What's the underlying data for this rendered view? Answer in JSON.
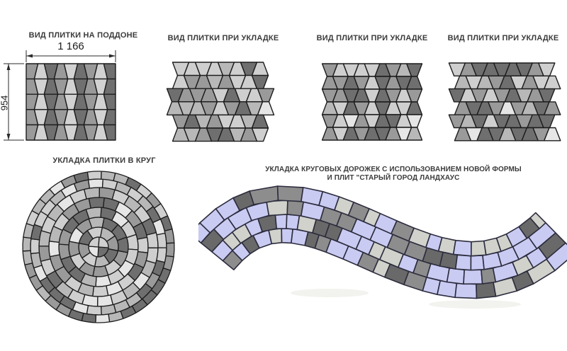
{
  "page": {
    "background": "#ffffff",
    "label_color": "#3b3b3b"
  },
  "panels": {
    "pallet": {
      "label": "ВИД ПЛИТКИ НА ПОДДОНЕ",
      "dim_width": "1 166",
      "dim_height": "954"
    },
    "laying1": {
      "label": "ВИД ПЛИТКИ ПРИ УКЛАДКЕ"
    },
    "laying2": {
      "label": "ВИД ПЛИТКИ ПРИ УКЛАДКЕ"
    },
    "laying3": {
      "label": "ВИД ПЛИТКИ ПРИ УКЛАДКЕ"
    },
    "circle": {
      "label": "УКЛАДКА ПЛИТКИ В КРУГ"
    },
    "path": {
      "label_line1": "УКЛАДКА КРУГОВЫХ ДОРОЖЕК С ИСПОЛЬЗОВАНИЕМ НОВОЙ ФОРМЫ",
      "label_line2": "И ПЛИТ \"СТАРЫЙ ГОРОД ЛАНДХАУС"
    }
  },
  "colors": {
    "outline": "#1c1c1c",
    "path_outline": "#2c2c3e",
    "dim_line": "#2a2a2a",
    "pallet_columns": [
      "#9a9a9a",
      "#d2d2d2",
      "#707070"
    ],
    "grays": {
      "dark": "#6f6f6f",
      "medium": "#9a9a9a",
      "soft": "#b8b8b8",
      "light": "#cfcfcf",
      "pale": "#e6e6e6"
    },
    "path_tiles": {
      "lavender": "#c9cbf2",
      "gray": "#8d8d8d",
      "light": "#d0d2cb",
      "dark": "#696969"
    }
  },
  "geometry": {
    "pallet_grid": {
      "cols": 9,
      "rows": 5
    },
    "laying1_grid": {
      "rows": 6,
      "bands": [
        {
          "cols": 8
        },
        {
          "cols": 9
        },
        {
          "cols": 8
        }
      ]
    },
    "laying2_grid": {
      "rows": 6,
      "cols": 9
    },
    "laying3_grid": {
      "rows": 6,
      "cols": 9
    },
    "circle_rings": {
      "radii": [
        14,
        28,
        42,
        56,
        70,
        84,
        96,
        107
      ],
      "segments": [
        4,
        8,
        12,
        16,
        20,
        24,
        29,
        34
      ]
    },
    "path_rows": 4
  }
}
